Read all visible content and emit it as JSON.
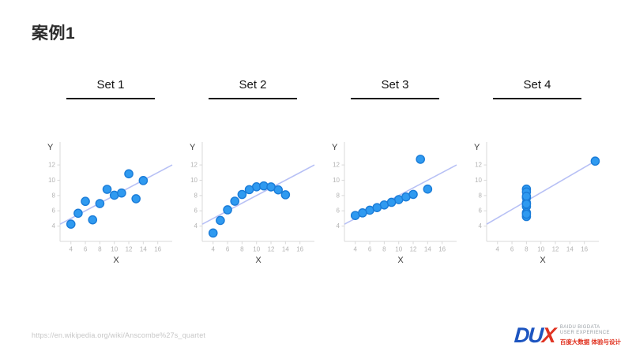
{
  "slide": {
    "title": "案例1",
    "source_url": "https://en.wikipedia.org/wiki/Anscombe%27s_quartet"
  },
  "logo": {
    "mark_d": "D",
    "mark_u": "U",
    "mark_x": "X",
    "line1": "BAIDU BIGDATA",
    "line2": "USER EXPERIENCE",
    "line3": "百度大数据 体验与设计"
  },
  "colors": {
    "point_fill": "#2f9af0",
    "point_stroke": "#1a7cd8",
    "trend_line": "#b7c0f5",
    "axis": "#d9d9d9",
    "tick_text": "#b3b3b3",
    "axis_label_text": "#3c3c3c"
  },
  "chart_data": [
    {
      "type": "scatter",
      "title": "Set 1",
      "xlabel": "X",
      "ylabel": "Y",
      "x": [
        10,
        8,
        13,
        9,
        11,
        14,
        6,
        4,
        12,
        7,
        5
      ],
      "y": [
        8.04,
        6.95,
        7.58,
        8.81,
        8.33,
        9.96,
        7.24,
        4.26,
        10.84,
        4.82,
        5.68
      ],
      "x_ticks": [
        4,
        6,
        8,
        10,
        12,
        14,
        16
      ],
      "y_ticks": [
        4,
        6,
        8,
        10,
        12
      ],
      "xlim": [
        2.5,
        18
      ],
      "ylim": [
        2,
        15
      ],
      "grid": false,
      "trend": {
        "slope": 0.5,
        "intercept": 3
      }
    },
    {
      "type": "scatter",
      "title": "Set 2",
      "xlabel": "X",
      "ylabel": "Y",
      "x": [
        10,
        8,
        13,
        9,
        11,
        14,
        6,
        4,
        12,
        7,
        5
      ],
      "y": [
        9.14,
        8.14,
        8.74,
        8.77,
        9.26,
        8.1,
        6.13,
        3.1,
        9.13,
        7.26,
        4.74
      ],
      "x_ticks": [
        4,
        6,
        8,
        10,
        12,
        14,
        16
      ],
      "y_ticks": [
        4,
        6,
        8,
        10,
        12
      ],
      "xlim": [
        2.5,
        18
      ],
      "ylim": [
        2,
        15
      ],
      "grid": false,
      "trend": {
        "slope": 0.5,
        "intercept": 3
      }
    },
    {
      "type": "scatter",
      "title": "Set 3",
      "xlabel": "X",
      "ylabel": "Y",
      "x": [
        10,
        8,
        13,
        9,
        11,
        14,
        6,
        4,
        12,
        7,
        5
      ],
      "y": [
        7.46,
        6.77,
        12.74,
        7.11,
        7.81,
        8.84,
        6.08,
        5.39,
        8.15,
        6.42,
        5.73
      ],
      "x_ticks": [
        4,
        6,
        8,
        10,
        12,
        14,
        16
      ],
      "y_ticks": [
        4,
        6,
        8,
        10,
        12
      ],
      "xlim": [
        2.5,
        18
      ],
      "ylim": [
        2,
        15
      ],
      "grid": false,
      "trend": {
        "slope": 0.5,
        "intercept": 3
      }
    },
    {
      "type": "scatter",
      "title": "Set 4",
      "xlabel": "X",
      "ylabel": "Y",
      "x": [
        8,
        8,
        8,
        8,
        8,
        8,
        8,
        19,
        8,
        8,
        8
      ],
      "y": [
        6.58,
        5.76,
        7.71,
        8.84,
        8.47,
        7.04,
        5.25,
        12.5,
        5.56,
        7.91,
        6.89
      ],
      "x_ticks": [
        4,
        6,
        8,
        10,
        12,
        14,
        16
      ],
      "y_ticks": [
        4,
        6,
        8,
        10,
        12
      ],
      "xlim": [
        2.5,
        18
      ],
      "ylim": [
        2,
        15
      ],
      "grid": false,
      "trend": {
        "slope": 0.5,
        "intercept": 3
      }
    }
  ]
}
